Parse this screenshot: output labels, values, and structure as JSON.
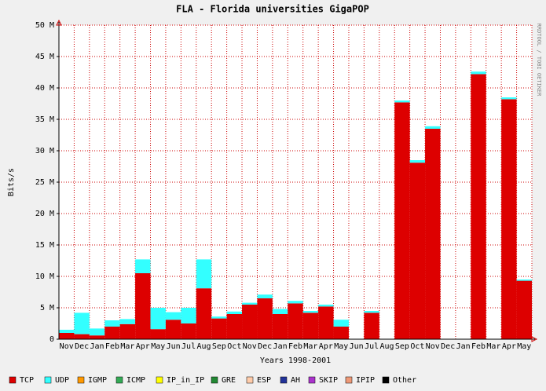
{
  "chart_data": {
    "type": "stacked_bar",
    "title": "FLA - Florida universities GigaPOP",
    "y_label": "Bits/s",
    "x_label": "Years 1998-2001",
    "watermark": "RRDTOOL / TOBI OETIKER",
    "categories": [
      "Nov",
      "Dec",
      "Jan",
      "Feb",
      "Mar",
      "Apr",
      "May",
      "Jun",
      "Jul",
      "Aug",
      "Sep",
      "Oct",
      "Nov",
      "Dec",
      "Jan",
      "Feb",
      "Mar",
      "Apr",
      "May",
      "Jun",
      "Jul",
      "Aug",
      "Sep",
      "Oct",
      "Nov",
      "Dec",
      "Jan",
      "Feb",
      "Mar",
      "Apr",
      "May"
    ],
    "series": [
      {
        "name": "TCP",
        "color": "#dd0000",
        "values": [
          1.0,
          0.8,
          0.6,
          2.0,
          2.4,
          10.5,
          1.6,
          3.1,
          2.5,
          8.1,
          3.3,
          4.0,
          5.5,
          6.5,
          4.0,
          5.7,
          4.2,
          5.2,
          2.0,
          0,
          4.2,
          0,
          37.7,
          28.1,
          33.5,
          0,
          0,
          42.2,
          0,
          38.2,
          9.3
        ]
      },
      {
        "name": "UDP",
        "color": "#33ffff",
        "values": [
          0.5,
          3.4,
          1.1,
          1.0,
          0.8,
          2.2,
          3.4,
          1.2,
          2.5,
          4.6,
          0.3,
          0.4,
          0.3,
          0.6,
          0.8,
          0.4,
          0.3,
          0.3,
          1.1,
          0,
          0.3,
          0,
          0.3,
          0.4,
          0.4,
          0,
          0,
          0.4,
          0,
          0.3,
          0.2
        ]
      },
      {
        "name": "IGMP",
        "color": "#ff9900",
        "values": [
          0,
          0,
          0,
          0,
          0,
          0,
          0,
          0,
          0,
          0,
          0,
          0,
          0,
          0,
          0,
          0,
          0,
          0,
          0,
          0,
          0,
          0,
          0,
          0,
          0,
          0,
          0,
          0,
          0,
          0,
          0
        ]
      },
      {
        "name": "ICMP",
        "color": "#33aa55",
        "values": [
          0,
          0,
          0,
          0,
          0,
          0,
          0,
          0,
          0,
          0,
          0,
          0,
          0,
          0,
          0,
          0,
          0,
          0,
          0,
          0,
          0,
          0,
          0,
          0,
          0,
          0,
          0,
          0,
          0,
          0,
          0
        ]
      },
      {
        "name": "IP_in_IP",
        "color": "#ffff00",
        "values": [
          0,
          0,
          0,
          0,
          0,
          0,
          0,
          0,
          0,
          0,
          0,
          0,
          0,
          0,
          0,
          0,
          0,
          0,
          0,
          0,
          0,
          0,
          0,
          0,
          0,
          0,
          0,
          0,
          0,
          0,
          0
        ]
      },
      {
        "name": "GRE",
        "color": "#228833",
        "values": [
          0,
          0,
          0,
          0,
          0,
          0,
          0,
          0,
          0,
          0,
          0,
          0,
          0,
          0,
          0,
          0,
          0,
          0,
          0,
          0,
          0,
          0,
          0,
          0,
          0,
          0,
          0,
          0,
          0,
          0,
          0
        ]
      },
      {
        "name": "ESP",
        "color": "#ffccaa",
        "values": [
          0,
          0,
          0,
          0,
          0,
          0,
          0,
          0,
          0,
          0,
          0,
          0,
          0,
          0,
          0,
          0,
          0,
          0,
          0,
          0,
          0,
          0,
          0,
          0,
          0,
          0,
          0,
          0,
          0,
          0,
          0
        ]
      },
      {
        "name": "AH",
        "color": "#223399",
        "values": [
          0,
          0,
          0,
          0,
          0,
          0,
          0,
          0,
          0,
          0,
          0,
          0,
          0,
          0,
          0,
          0,
          0,
          0,
          0,
          0,
          0,
          0,
          0,
          0,
          0,
          0,
          0,
          0,
          0,
          0,
          0
        ]
      },
      {
        "name": "SKIP",
        "color": "#aa33cc",
        "values": [
          0,
          0,
          0,
          0,
          0,
          0,
          0,
          0,
          0,
          0,
          0,
          0,
          0,
          0,
          0,
          0,
          0,
          0,
          0,
          0,
          0,
          0,
          0,
          0,
          0,
          0,
          0,
          0,
          0,
          0,
          0
        ]
      },
      {
        "name": "IPIP",
        "color": "#ee9977",
        "values": [
          0,
          0,
          0,
          0,
          0,
          0,
          0,
          0,
          0,
          0,
          0,
          0,
          0,
          0,
          0,
          0,
          0,
          0,
          0,
          0,
          0,
          0,
          0,
          0,
          0,
          0,
          0,
          0,
          0,
          0,
          0
        ]
      },
      {
        "name": "Other",
        "color": "#000000",
        "values": [
          0,
          0,
          0,
          0,
          0,
          0,
          0,
          0,
          0,
          0,
          0,
          0,
          0,
          0,
          0,
          0,
          0,
          0,
          0,
          0,
          0,
          0,
          0,
          0,
          0,
          0,
          0,
          0,
          0,
          0,
          0
        ]
      }
    ],
    "ylim": [
      0,
      50
    ],
    "yticks": [
      0,
      {
        "value": 5,
        "label": "5 M"
      },
      {
        "value": 10,
        "label": "10 M"
      },
      {
        "value": 15,
        "label": "15 M"
      },
      {
        "value": 20,
        "label": "20 M"
      },
      {
        "value": 25,
        "label": "25 M"
      },
      {
        "value": 30,
        "label": "30 M"
      },
      {
        "value": 35,
        "label": "35 M"
      },
      {
        "value": 40,
        "label": "40 M"
      },
      {
        "value": 45,
        "label": "45 M"
      },
      {
        "value": 50,
        "label": "50 M"
      }
    ],
    "grid": true
  }
}
